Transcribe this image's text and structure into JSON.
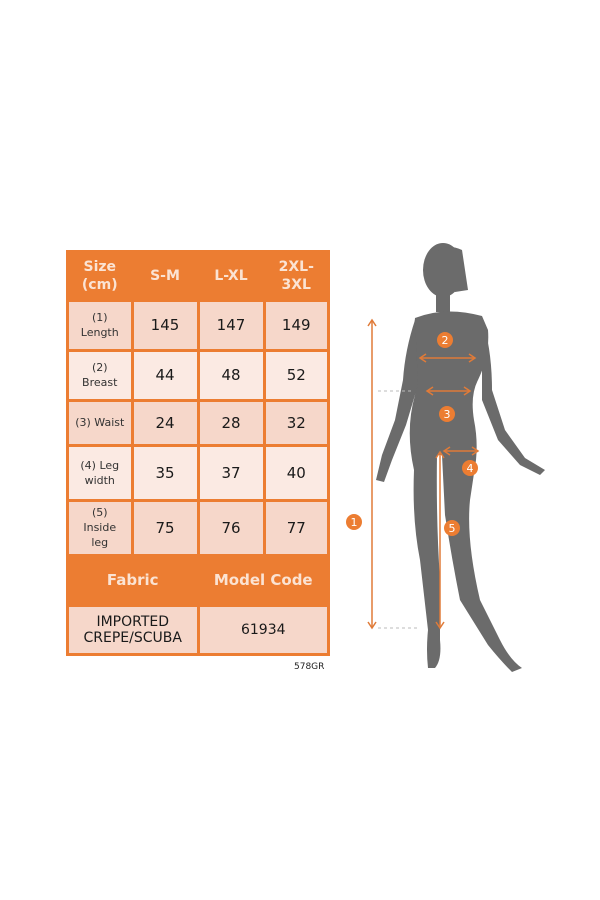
{
  "table": {
    "header": [
      "Size\n(cm)",
      "S-M",
      "L-XL",
      "2XL-\n3XL"
    ],
    "rows": [
      {
        "label": "(1)\nLength",
        "values": [
          "145",
          "147",
          "149"
        ]
      },
      {
        "label": "(2)\nBreast",
        "values": [
          "44",
          "48",
          "52"
        ]
      },
      {
        "label": "(3) Waist",
        "values": [
          "24",
          "28",
          "32"
        ]
      },
      {
        "label": "(4) Leg\nwidth",
        "values": [
          "35",
          "37",
          "40"
        ]
      },
      {
        "label": "(5)\nInside\nleg",
        "values": [
          "75",
          "76",
          "77"
        ]
      }
    ],
    "fabric_label": "Fabric",
    "model_code_label": "Model Code",
    "fabric_value": "IMPORTED\nCREPE/SCUBA",
    "model_code_value": "61934"
  },
  "product_code": "578GR",
  "figure": {
    "markers": [
      "1",
      "2",
      "3",
      "4",
      "5"
    ]
  },
  "colors": {
    "accent": "#ec7d32",
    "silhouette": "#6b6b6b",
    "row_dark": "#f6d7ca",
    "row_light": "#fbeae3"
  }
}
